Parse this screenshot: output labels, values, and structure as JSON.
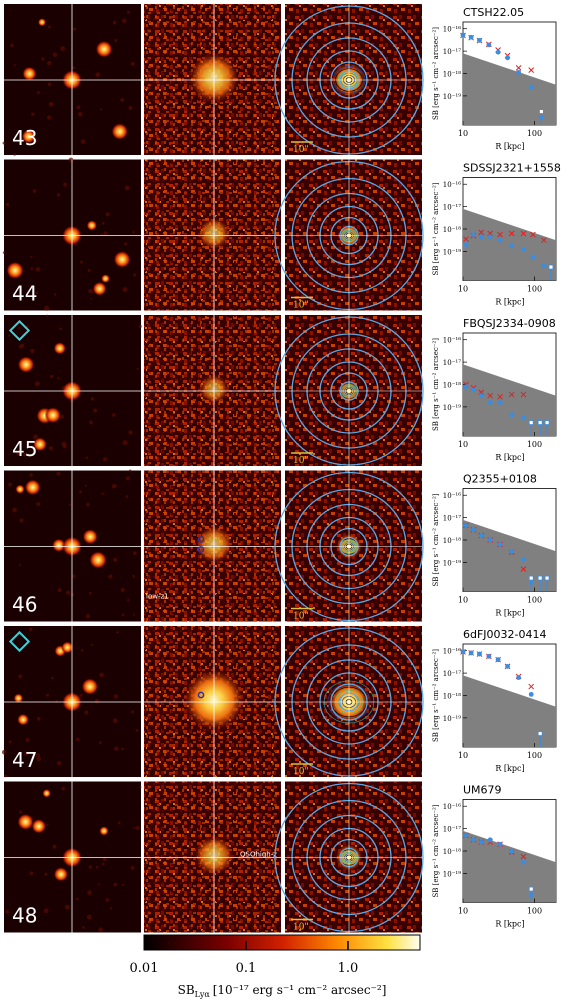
{
  "figure": {
    "rows": [
      {
        "id": "43",
        "quasar": "CTSH22.05",
        "has_diamond": false,
        "annotation": "",
        "obs": [
          [
            10,
            0.72
          ],
          [
            13,
            0.62
          ],
          [
            17,
            0.48
          ],
          [
            23,
            0.28
          ],
          [
            31,
            -0.05
          ],
          [
            42,
            -0.3
          ],
          [
            60,
            -0.95
          ],
          [
            90,
            -1.6
          ],
          [
            125,
            -2.95
          ]
        ],
        "mod": [
          [
            10,
            0.7
          ],
          [
            13,
            0.6
          ],
          [
            17,
            0.47
          ],
          [
            23,
            0.3
          ],
          [
            31,
            0.05
          ],
          [
            42,
            -0.2
          ],
          [
            60,
            -0.75
          ],
          [
            90,
            -0.85
          ]
        ],
        "obs_upper": [
          125
        ],
        "glow": 1.0
      },
      {
        "id": "44",
        "quasar": "SDSSJ2321+1558",
        "has_diamond": false,
        "annotation": "",
        "obs": [
          [
            11,
            -1.7
          ],
          [
            14,
            -1.25
          ],
          [
            18,
            -1.35
          ],
          [
            24,
            -1.35
          ],
          [
            33,
            -1.5
          ],
          [
            48,
            -1.75
          ],
          [
            70,
            -1.9
          ],
          [
            95,
            -2.25
          ],
          [
            135,
            -2.65
          ],
          [
            170,
            -2.7
          ]
        ],
        "mod": [
          [
            11,
            -1.45
          ],
          [
            14,
            -1.3
          ],
          [
            18,
            -1.15
          ],
          [
            24,
            -1.2
          ],
          [
            33,
            -1.25
          ],
          [
            48,
            -1.2
          ],
          [
            70,
            -1.2
          ],
          [
            95,
            -1.25
          ],
          [
            135,
            -1.5
          ]
        ],
        "obs_upper": [
          170
        ],
        "glow": 0.35
      },
      {
        "id": "45",
        "quasar": "FBQSJ2334-0908",
        "has_diamond": true,
        "annotation": "",
        "obs": [
          [
            11,
            -1.1
          ],
          [
            14,
            -1.25
          ],
          [
            18,
            -1.5
          ],
          [
            24,
            -1.8
          ],
          [
            33,
            -1.8
          ],
          [
            48,
            -2.35
          ],
          [
            70,
            -2.5
          ]
        ],
        "mod": [
          [
            11,
            -1.0
          ],
          [
            14,
            -1.15
          ],
          [
            18,
            -1.35
          ],
          [
            24,
            -1.5
          ],
          [
            33,
            -1.55
          ],
          [
            48,
            -1.45
          ],
          [
            70,
            -1.45
          ]
        ],
        "obs_upper": [
          90,
          120,
          150
        ],
        "glow": 0.25
      },
      {
        "id": "46",
        "quasar": "Q2355+0108",
        "has_diamond": false,
        "annotation": "low-z1",
        "obs": [
          [
            11,
            -0.35
          ],
          [
            14,
            -0.55
          ],
          [
            18,
            -0.8
          ],
          [
            24,
            -1.0
          ],
          [
            33,
            -1.2
          ],
          [
            48,
            -1.5
          ],
          [
            70,
            -1.85
          ],
          [
            90,
            -2.9
          ]
        ],
        "mod": [
          [
            11,
            -0.35
          ],
          [
            14,
            -0.55
          ],
          [
            18,
            -0.8
          ],
          [
            24,
            -1.0
          ],
          [
            33,
            -1.2
          ],
          [
            48,
            -1.55
          ],
          [
            70,
            -2.3
          ]
        ],
        "obs_upper": [
          90,
          120,
          150
        ],
        "glow": 0.55
      },
      {
        "id": "47",
        "quasar": "6dFJ0032-0414",
        "has_diamond": true,
        "annotation": "",
        "obs": [
          [
            10,
            0.95
          ],
          [
            13,
            0.9
          ],
          [
            17,
            0.85
          ],
          [
            23,
            0.75
          ],
          [
            31,
            0.6
          ],
          [
            42,
            0.3
          ],
          [
            60,
            -0.2
          ],
          [
            90,
            -0.95
          ]
        ],
        "mod": [
          [
            10,
            0.95
          ],
          [
            13,
            0.9
          ],
          [
            17,
            0.85
          ],
          [
            23,
            0.75
          ],
          [
            31,
            0.6
          ],
          [
            42,
            0.3
          ],
          [
            60,
            -0.15
          ],
          [
            90,
            -0.6
          ]
        ],
        "obs_upper": [
          120
        ],
        "glow": 1.4
      },
      {
        "id": "48",
        "quasar": "UM679",
        "has_diamond": false,
        "annotation": "QSOhigh-z",
        "obs": [
          [
            11,
            -0.3
          ],
          [
            14,
            -0.5
          ],
          [
            18,
            -0.6
          ],
          [
            24,
            -0.5
          ],
          [
            33,
            -0.7
          ],
          [
            48,
            -1.0
          ],
          [
            70,
            -1.5
          ],
          [
            90,
            -2.95
          ]
        ],
        "mod": [
          [
            11,
            -0.3
          ],
          [
            14,
            -0.5
          ],
          [
            18,
            -0.6
          ],
          [
            24,
            -0.6
          ],
          [
            33,
            -0.7
          ],
          [
            48,
            -1.05
          ],
          [
            70,
            -1.25
          ]
        ],
        "obs_upper": [
          90
        ],
        "glow": 0.6
      }
    ],
    "scale_label": "10\"",
    "plot_labels": {
      "ylabel": "SB [erg s⁻¹ cm⁻² arcsec⁻²]",
      "xlabel": "R [kpc]",
      "yticks": [
        "10⁻¹⁶",
        "10⁻¹⁷",
        "10⁻¹⁸",
        "10⁻¹⁹"
      ],
      "xticks": [
        "10",
        "100"
      ]
    },
    "colorbar": {
      "ticks": [
        "0.01",
        "0.1",
        "1.0"
      ],
      "label": "SBₗᵧₐ [10⁻¹⁷ erg s⁻¹ cm⁻² arcsec⁻²]",
      "label_main": "SB",
      "label_sub": "Lyα",
      "label_units": "[10⁻¹⁷ erg s⁻¹ cm⁻² arcsec⁻²]"
    },
    "colors": {
      "observed": "#3a8de0",
      "model": "#e02020",
      "noise": "#808080",
      "rings": "#5aa8e8",
      "diamond": "#3fd0d8",
      "scalebar": "#d8c040"
    }
  }
}
